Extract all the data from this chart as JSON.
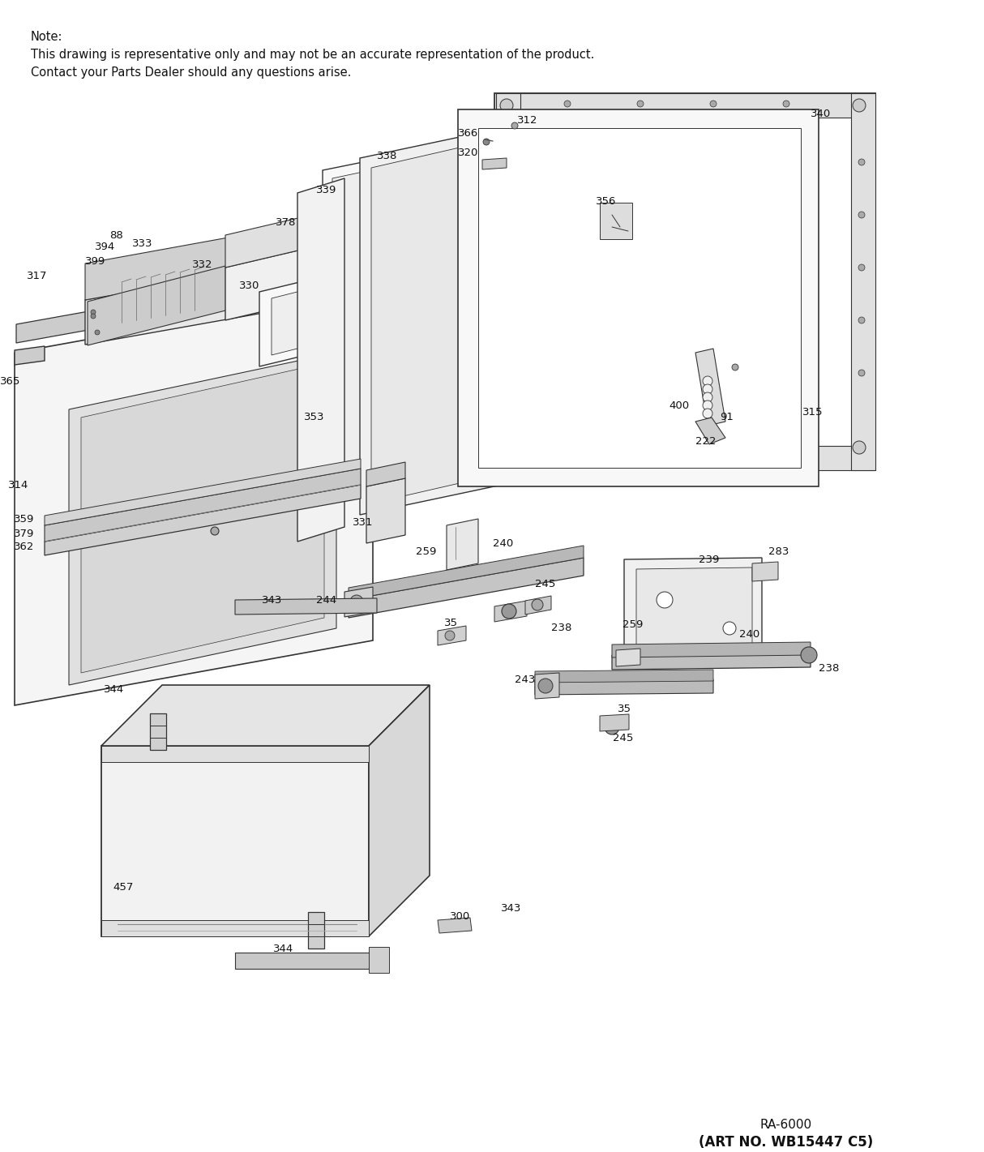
{
  "background_color": "#ffffff",
  "figure_width": 12.14,
  "figure_height": 14.21,
  "dpi": 100,
  "note_lines": [
    "Note:",
    "This drawing is representative only and may not be an accurate representation of the product.",
    "Contact your Parts Dealer should any questions arise."
  ],
  "footer_line1": "RA-6000",
  "footer_line2": "(ART NO. WB15447 C5)",
  "label_fontsize": 9.5,
  "note_fontsize": 10.5,
  "footer_fontsize1": 11,
  "footer_fontsize2": 12,
  "ec": "#333333",
  "lw": 0.9
}
